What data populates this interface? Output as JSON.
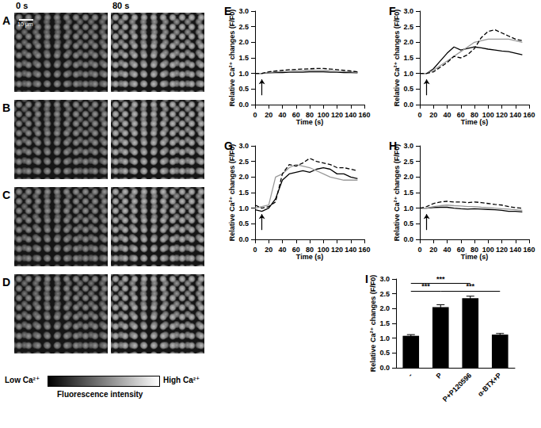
{
  "image_panels": {
    "labels": [
      "A",
      "B",
      "C",
      "D"
    ],
    "times": [
      "0 s",
      "80 s"
    ],
    "scale_bar": "10 μm",
    "colorbar": {
      "low": "Low Ca²⁺",
      "high": "High Ca²⁺",
      "label": "Fluorescence intensity"
    }
  },
  "chart_data": [
    {
      "type": "line",
      "title": "E",
      "xlabel": "Time (s)",
      "ylabel": "Relative Ca²⁺ changes (F/F0)",
      "x": [
        0,
        10,
        20,
        30,
        40,
        50,
        60,
        70,
        80,
        90,
        100,
        110,
        120,
        130,
        140,
        150
      ],
      "series": [
        {
          "color": "#000000",
          "line_style": "solid",
          "values": [
            1,
            1,
            1.02,
            1.03,
            1.03,
            1.04,
            1.04,
            1.04,
            1.05,
            1.05,
            1.05,
            1.04,
            1.04,
            1.03,
            1.03,
            1.02
          ]
        },
        {
          "color": "#999999",
          "line_style": "solid",
          "values": [
            1,
            1,
            1.03,
            1.05,
            1.06,
            1.07,
            1.08,
            1.08,
            1.1,
            1.1,
            1.1,
            1.08,
            1.07,
            1.06,
            1.05,
            1.03
          ]
        },
        {
          "color": "#000000",
          "line_style": "dashed",
          "values": [
            1,
            1,
            1.05,
            1.08,
            1.1,
            1.12,
            1.13,
            1.14,
            1.15,
            1.16,
            1.16,
            1.14,
            1.12,
            1.1,
            1.08,
            1.05
          ]
        }
      ],
      "stimulus_x": 10,
      "xlim": [
        0,
        160
      ],
      "xticks": [
        0,
        20,
        40,
        60,
        80,
        100,
        120,
        140,
        160
      ],
      "ylim": [
        0,
        3
      ],
      "yticks": [
        {
          "value": 0,
          "label": "0.0"
        },
        0.5,
        {
          "value": 1,
          "label": "1.0"
        },
        1.5,
        {
          "value": 2,
          "label": "2.0"
        },
        2.5,
        {
          "value": 3,
          "label": "3.0"
        }
      ],
      "grid": false
    },
    {
      "type": "line",
      "title": "F",
      "xlabel": "Time (s)",
      "ylabel": "Relative Ca²⁺ changes (F/F0)",
      "x": [
        0,
        10,
        20,
        30,
        40,
        50,
        60,
        70,
        80,
        90,
        100,
        110,
        120,
        130,
        140,
        150
      ],
      "series": [
        {
          "color": "#000000",
          "line_style": "solid",
          "values": [
            1,
            1,
            1.15,
            1.4,
            1.65,
            1.85,
            1.75,
            1.8,
            1.85,
            1.82,
            1.78,
            1.75,
            1.72,
            1.7,
            1.65,
            1.6
          ]
        },
        {
          "color": "#999999",
          "line_style": "solid",
          "values": [
            1,
            1,
            1.1,
            1.25,
            1.4,
            1.55,
            1.7,
            1.85,
            2.0,
            2.05,
            2.1,
            2.1,
            2.1,
            2.1,
            2.05,
            2.0
          ]
        },
        {
          "color": "#000000",
          "line_style": "dashed",
          "values": [
            1,
            1,
            1.05,
            1.2,
            1.35,
            1.55,
            1.5,
            1.6,
            1.8,
            2.15,
            2.35,
            2.4,
            2.3,
            2.2,
            2.1,
            2.05
          ]
        }
      ],
      "stimulus_x": 10,
      "xlim": [
        0,
        160
      ],
      "xticks": [
        0,
        20,
        40,
        60,
        80,
        100,
        120,
        140,
        160
      ],
      "ylim": [
        0,
        3
      ],
      "yticks": [
        {
          "value": 0,
          "label": "0.0"
        },
        0.5,
        {
          "value": 1,
          "label": "1.0"
        },
        1.5,
        {
          "value": 2,
          "label": "2.0"
        },
        2.5,
        {
          "value": 3,
          "label": "3.0"
        }
      ],
      "grid": false
    },
    {
      "type": "line",
      "title": "G",
      "xlabel": "Time (s)",
      "ylabel": "Relative Ca²⁺ changes (F/F0)",
      "x": [
        0,
        10,
        20,
        30,
        40,
        50,
        60,
        70,
        80,
        90,
        100,
        110,
        120,
        130,
        140,
        150
      ],
      "series": [
        {
          "color": "#000000",
          "line_style": "solid",
          "values": [
            0.95,
            0.9,
            1.0,
            1.3,
            1.9,
            2.1,
            2.15,
            2.2,
            2.15,
            2.25,
            2.3,
            2.25,
            2.1,
            2.1,
            2.0,
            1.95
          ]
        },
        {
          "color": "#999999",
          "line_style": "solid",
          "values": [
            1.0,
            1.05,
            1.1,
            2.0,
            2.1,
            2.3,
            2.4,
            2.35,
            2.3,
            2.2,
            2.1,
            2.0,
            1.95,
            1.9,
            1.9,
            1.9
          ]
        },
        {
          "color": "#000000",
          "line_style": "dashed",
          "values": [
            1.1,
            1.0,
            1.05,
            1.2,
            2.1,
            2.4,
            2.35,
            2.45,
            2.6,
            2.5,
            2.45,
            2.4,
            2.3,
            2.3,
            2.25,
            2.2
          ]
        }
      ],
      "stimulus_x": 10,
      "xlim": [
        0,
        160
      ],
      "xticks": [
        0,
        20,
        40,
        60,
        80,
        100,
        120,
        140,
        160
      ],
      "ylim": [
        0,
        3
      ],
      "yticks": [
        {
          "value": 0,
          "label": "0.0"
        },
        0.5,
        {
          "value": 1,
          "label": "1.0"
        },
        1.5,
        {
          "value": 2,
          "label": "2.0"
        },
        2.5,
        {
          "value": 3,
          "label": "3.0"
        }
      ],
      "grid": false
    },
    {
      "type": "line",
      "title": "H",
      "xlabel": "Time (s)",
      "ylabel": "Relative Ca²⁺ changes (F/F0)",
      "x": [
        0,
        10,
        20,
        30,
        40,
        50,
        60,
        70,
        80,
        90,
        100,
        110,
        120,
        130,
        140,
        150
      ],
      "series": [
        {
          "color": "#000000",
          "line_style": "solid",
          "values": [
            1,
            1,
            1.02,
            1.03,
            1.03,
            1.0,
            0.98,
            0.97,
            0.98,
            0.97,
            0.96,
            0.95,
            0.93,
            0.9,
            0.9,
            0.88
          ]
        },
        {
          "color": "#999999",
          "line_style": "solid",
          "values": [
            1,
            1,
            1.05,
            1.08,
            1.1,
            1.08,
            1.07,
            1.05,
            1.05,
            1.03,
            1.02,
            1.0,
            0.98,
            0.97,
            0.95,
            0.93
          ]
        },
        {
          "color": "#000000",
          "line_style": "dashed",
          "values": [
            1,
            1.05,
            1.15,
            1.2,
            1.22,
            1.2,
            1.2,
            1.18,
            1.2,
            1.18,
            1.15,
            1.12,
            1.1,
            1.05,
            1.02,
            1.0
          ]
        }
      ],
      "stimulus_x": 10,
      "xlim": [
        0,
        160
      ],
      "xticks": [
        0,
        20,
        40,
        60,
        80,
        100,
        120,
        140,
        160
      ],
      "ylim": [
        0,
        3
      ],
      "yticks": [
        {
          "value": 0,
          "label": "0.0"
        },
        0.5,
        {
          "value": 1,
          "label": "1.0"
        },
        1.5,
        {
          "value": 2,
          "label": "2.0"
        },
        2.5,
        {
          "value": 3,
          "label": "3.0"
        }
      ],
      "grid": false
    },
    {
      "type": "bar",
      "title": "I",
      "ylabel": "Relative Ca²⁺ changes (F/F0)",
      "categories": [
        "-",
        "P",
        "P+P120596",
        "α-BTX+P"
      ],
      "values": [
        1.08,
        2.05,
        2.35,
        1.12
      ],
      "errors": [
        0.04,
        0.08,
        0.07,
        0.04
      ],
      "color": "#000000",
      "significance": [
        {
          "from": "-",
          "to": "P+P120596",
          "y": 2.85,
          "label": "***"
        },
        {
          "from": "-",
          "to": "P",
          "y": 2.6,
          "label": "***"
        },
        {
          "from": "P",
          "to": "α-BTX+P",
          "y": 2.6,
          "label": "***"
        }
      ],
      "ylim": [
        0,
        3
      ],
      "yticks": [
        {
          "value": 0,
          "label": "0.0"
        },
        0.5,
        {
          "value": 1,
          "label": "1.0"
        },
        1.5,
        {
          "value": 2,
          "label": "2.0"
        },
        2.5,
        {
          "value": 3,
          "label": "3.0"
        }
      ],
      "grid": false
    }
  ]
}
